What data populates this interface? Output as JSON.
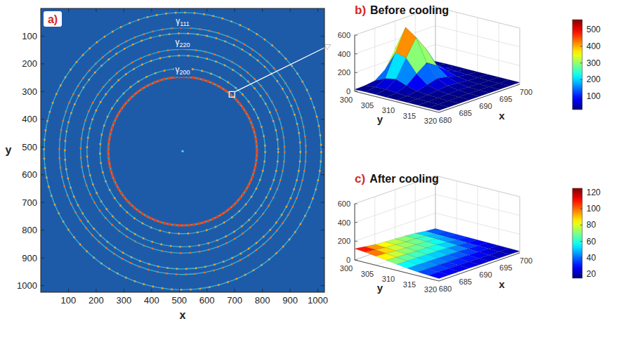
{
  "chart_data": [
    {
      "type": "image",
      "label": "a)",
      "xlabel": "x",
      "ylabel": "y",
      "xlim": [
        0,
        1024
      ],
      "ylim": [
        0,
        1024
      ],
      "xticks": [
        100,
        200,
        300,
        400,
        500,
        600,
        700,
        800,
        900,
        1000
      ],
      "yticks": [
        100,
        200,
        300,
        400,
        500,
        600,
        700,
        800,
        900,
        1000
      ],
      "center": [
        512,
        515
      ],
      "rings": [
        {
          "radius": 268,
          "label": "γ200",
          "color": "#e2461c",
          "line_style": "solid"
        },
        {
          "radius": 298,
          "color": "#f0a030",
          "line_style": "dotted"
        },
        {
          "radius": 345,
          "color": "#f0a030",
          "line_style": "dotted"
        },
        {
          "radius": 368,
          "label": "γ220",
          "color": "#ef6a1e",
          "line_style": "dotted"
        },
        {
          "radius": 425,
          "color": "#f0a030",
          "line_style": "dotted"
        },
        {
          "radius": 445,
          "label": "γ111",
          "color": "#ef6a1e",
          "line_style": "dotted"
        },
        {
          "radius": 500,
          "color": "#f0a030",
          "line_style": "dotted"
        }
      ],
      "zoom_box": [
        680,
        700,
        300,
        320
      ]
    },
    {
      "type": "surface",
      "label": "b)",
      "title": "Before cooling",
      "xlabel": "x",
      "ylabel": "y",
      "xlim": [
        680,
        700
      ],
      "ylim": [
        300,
        320
      ],
      "zlim": [
        0,
        600
      ],
      "xticks": [
        680,
        685,
        690,
        695,
        700
      ],
      "yticks": [
        300,
        305,
        310,
        315,
        320
      ],
      "zticks": [
        0,
        200,
        400,
        600
      ],
      "x": [
        680,
        682.5,
        685,
        687.5,
        690,
        692.5,
        695,
        697.5,
        700
      ],
      "y": [
        300,
        302.5,
        305,
        307.5,
        310,
        312.5,
        315,
        317.5,
        320
      ],
      "z": [
        [
          20,
          25,
          40,
          120,
          300,
          180,
          60,
          30,
          20
        ],
        [
          22,
          35,
          90,
          330,
          560,
          380,
          110,
          40,
          22
        ],
        [
          22,
          40,
          110,
          300,
          480,
          320,
          120,
          45,
          22
        ],
        [
          20,
          30,
          70,
          160,
          240,
          170,
          80,
          35,
          20
        ],
        [
          20,
          25,
          40,
          70,
          100,
          80,
          45,
          28,
          20
        ],
        [
          20,
          22,
          28,
          40,
          50,
          42,
          30,
          24,
          20
        ],
        [
          20,
          20,
          22,
          26,
          30,
          27,
          23,
          21,
          20
        ],
        [
          20,
          20,
          20,
          22,
          24,
          22,
          21,
          20,
          20
        ],
        [
          20,
          20,
          20,
          20,
          21,
          20,
          20,
          20,
          20
        ]
      ],
      "colorbar": {
        "lim": [
          20,
          560
        ],
        "ticks": [
          100,
          200,
          300,
          400,
          500
        ]
      }
    },
    {
      "type": "surface",
      "label": "c)",
      "title": "After cooling",
      "xlabel": "x",
      "ylabel": "y",
      "xlim": [
        680,
        700
      ],
      "ylim": [
        300,
        320
      ],
      "zlim": [
        0,
        600
      ],
      "xticks": [
        680,
        685,
        690,
        695,
        700
      ],
      "yticks": [
        300,
        305,
        310,
        315,
        320
      ],
      "zticks": [
        0,
        200,
        400,
        600
      ],
      "x": [
        680,
        682.5,
        685,
        687.5,
        690,
        692.5,
        695,
        697.5,
        700
      ],
      "y": [
        300,
        302.5,
        305,
        307.5,
        310,
        312.5,
        315,
        317.5,
        320
      ],
      "z": [
        [
          120,
          105,
          90,
          80,
          75,
          70,
          60,
          45,
          35
        ],
        [
          110,
          100,
          85,
          78,
          72,
          68,
          58,
          42,
          32
        ],
        [
          95,
          88,
          78,
          72,
          70,
          65,
          55,
          40,
          30
        ],
        [
          80,
          75,
          70,
          66,
          64,
          60,
          50,
          38,
          28
        ],
        [
          65,
          62,
          60,
          58,
          56,
          52,
          44,
          34,
          26
        ],
        [
          50,
          50,
          48,
          46,
          44,
          42,
          36,
          30,
          24
        ],
        [
          40,
          40,
          38,
          36,
          35,
          33,
          30,
          26,
          22
        ],
        [
          32,
          32,
          30,
          29,
          28,
          27,
          25,
          22,
          20
        ],
        [
          26,
          26,
          25,
          24,
          23,
          22,
          21,
          20,
          18
        ]
      ],
      "colorbar": {
        "lim": [
          15,
          125
        ],
        "ticks": [
          20,
          40,
          60,
          80,
          100,
          120
        ]
      }
    }
  ]
}
